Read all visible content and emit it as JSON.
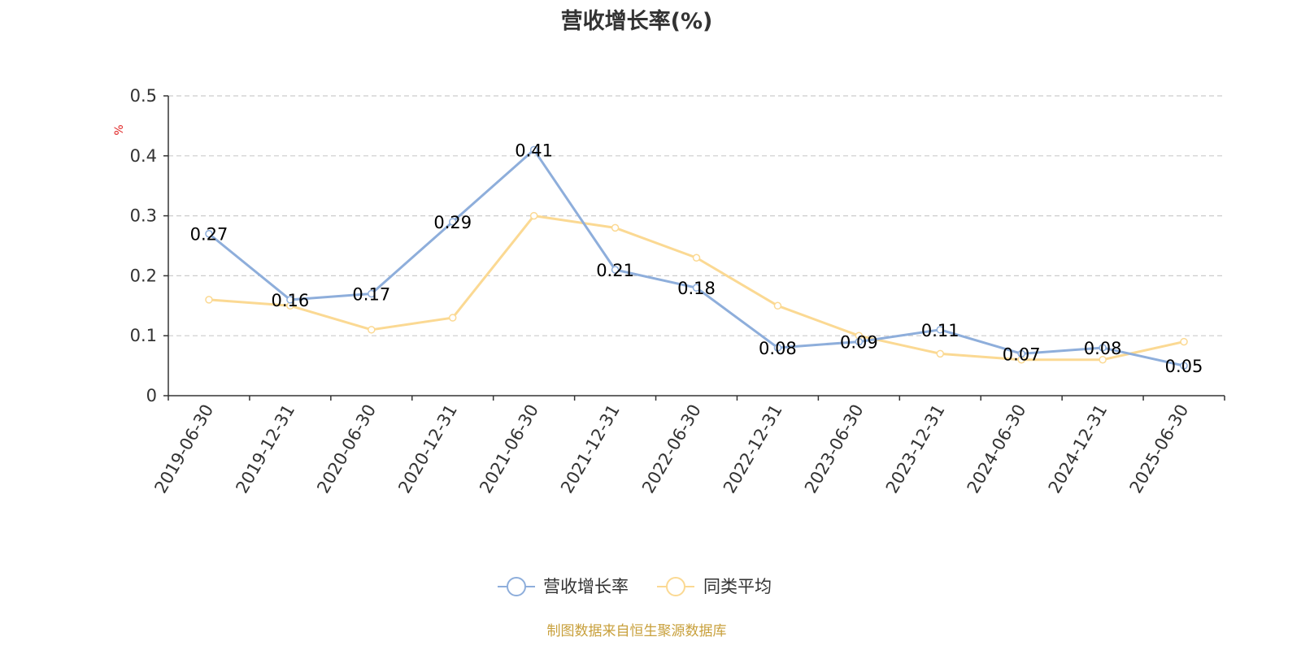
{
  "chart_data": {
    "type": "line",
    "title": "营收增长率(%)",
    "ylabel": "%",
    "ylim": [
      0,
      0.5
    ],
    "yticks": [
      "0",
      "0.1",
      "0.2",
      "0.3",
      "0.4",
      "0.5"
    ],
    "grid": true,
    "legend_position": "bottom",
    "categories": [
      "2019-06-30",
      "2019-12-31",
      "2020-06-30",
      "2020-12-31",
      "2021-06-30",
      "2021-12-31",
      "2022-06-30",
      "2022-12-31",
      "2023-06-30",
      "2023-12-31",
      "2024-06-30",
      "2024-12-31",
      "2025-06-30"
    ],
    "series": [
      {
        "name": "营收增长率",
        "color": "#8eaedb",
        "values": [
          0.27,
          0.16,
          0.17,
          0.29,
          0.41,
          0.21,
          0.18,
          0.08,
          0.09,
          0.11,
          0.07,
          0.08,
          0.05
        ],
        "labels": [
          "0.27",
          "0.16",
          "0.17",
          "0.29",
          "0.41",
          "0.21",
          "0.18",
          "0.08",
          "0.09",
          "0.11",
          "0.07",
          "0.08",
          "0.05"
        ]
      },
      {
        "name": "同类平均",
        "color": "#fbd993",
        "values": [
          0.16,
          0.15,
          0.11,
          0.13,
          0.3,
          0.28,
          0.23,
          0.15,
          0.1,
          0.07,
          0.06,
          0.06,
          0.09
        ]
      }
    ]
  },
  "footer": {
    "source": "制图数据来自恒生聚源数据库",
    "source_color": "#c8a03c"
  },
  "colors": {
    "ylabel": "#e02020",
    "axis": "#333333",
    "grid": "#cccccc"
  }
}
